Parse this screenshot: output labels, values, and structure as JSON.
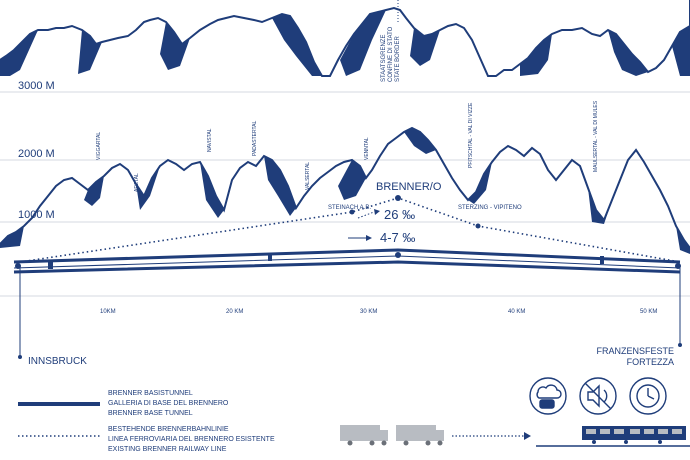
{
  "colors": {
    "navy": "#1f3d7a",
    "profile_fill": "#1f3d7a",
    "line": "#1f3d7a",
    "truck_gray": "#b8bcc2",
    "light_rule": "#d5d9e2"
  },
  "elevation_labels": [
    "3000 M",
    "2000 M",
    "1000 M"
  ],
  "distance_labels": [
    "10KM",
    "20 KM",
    "30 KM",
    "40 KM",
    "50 KM"
  ],
  "valley_labels": {
    "viggartal": "VIGGARTAL",
    "arztal": "ARZTAL",
    "navistal": "NAVISTAL",
    "padastertal": "PADASTERTAL",
    "valsertal": "VALSERTAL",
    "venntal": "VENNTAL",
    "pfitschtal": "PFITSCHTAL - VAL DI VIZZE",
    "maulsertal": "MAULSERTAL - VAL DI MULES"
  },
  "border_label": [
    "STAATSGRENZE",
    "CONFINE DI STATO",
    "STATE BORDER"
  ],
  "stations": {
    "steinach": "STEINACH A.B.",
    "brenner": "BRENNER/O",
    "sterzing": "STERZING - VIPITENO"
  },
  "gradients": {
    "existing": "26 ‰",
    "base_tunnel": "4-7 ‰"
  },
  "endpoints": {
    "innsbruck": "INNSBRUCK",
    "franzensfeste_line1": "FRANZENSFESTE",
    "franzensfeste_line2": "FORTEZZA"
  },
  "legend": {
    "base_tunnel": [
      "BRENNER BASISTUNNEL",
      "GALLERIA DI BASE DEL BRENNERO",
      "BRENNER BASE TUNNEL"
    ],
    "existing_line": [
      "BESTEHENDE BRENNERBAHNLINIE",
      "LINEA FERROVIARIA DEL BRENNERO ESISTENTE",
      "EXISTING BRENNER RAILWAY LINE"
    ]
  },
  "icons": [
    "weather-cloud-train-icon",
    "no-noise-icon",
    "clock-icon",
    "truck-icon",
    "train-icon",
    "arrow-right-icon"
  ]
}
